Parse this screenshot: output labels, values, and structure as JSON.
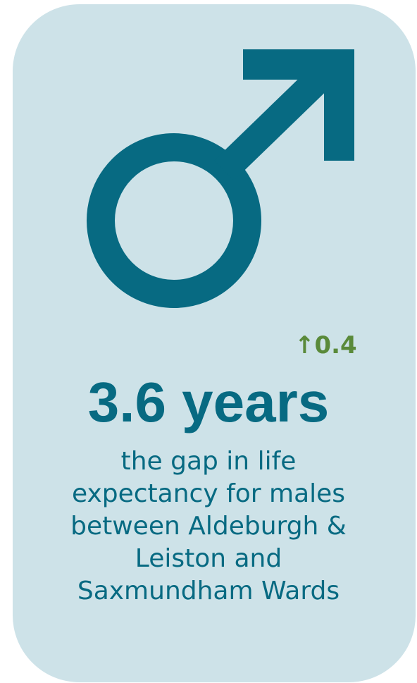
{
  "change": "↑0.4",
  "headline": "3.6 years",
  "description": [
    "the gap in life",
    "expectancy for males",
    "between Aldeburgh &",
    "Leiston and",
    "Saxmundham Wards"
  ]
}
